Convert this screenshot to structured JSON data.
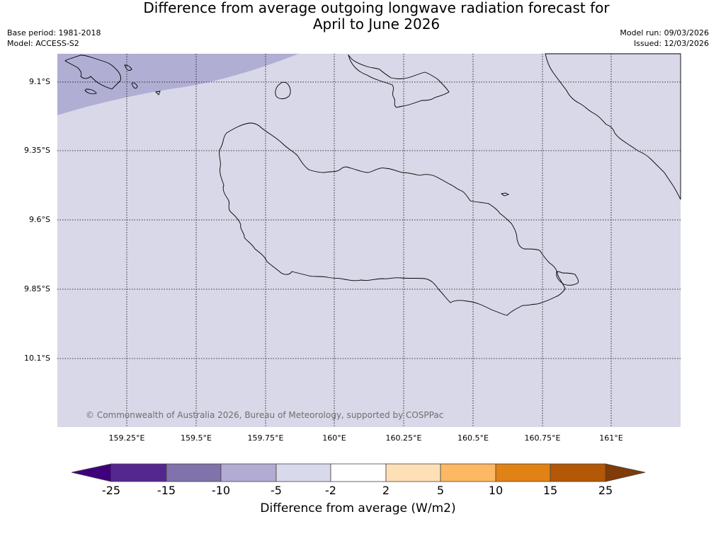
{
  "title_line1": "Difference from average outgoing longwave radiation forecast for",
  "title_line2": "April to June 2026",
  "meta": {
    "base_period": "Base period: 1981-2018",
    "model": "Model: ACCESS-S2",
    "model_run": "Model run: 09/03/2026",
    "issued": "Issued: 12/03/2026"
  },
  "map": {
    "lat_labels": [
      "9.1°S",
      "9.35°S",
      "9.6°S",
      "9.85°S",
      "10.1°S"
    ],
    "lon_labels": [
      "159.25°E",
      "159.5°E",
      "159.75°E",
      "160°E",
      "160.25°E",
      "160.5°E",
      "160.75°E",
      "161°E"
    ],
    "copyright": "© Commonwealth of Australia 2026, Bureau of Meteorology, supported by COSPPac",
    "background_color": "#d8d8e8",
    "anomaly_region_color": "#b1aed4"
  },
  "colorbar": {
    "title": "Difference from average (W/m2)",
    "tick_labels": [
      "-25",
      "-15",
      "-10",
      "-5",
      "-2",
      "2",
      "5",
      "10",
      "15",
      "25"
    ],
    "under_color": "#3f007d",
    "over_color": "#7f3b08",
    "bins": [
      {
        "from": -25,
        "to": -15,
        "color": "#54278f"
      },
      {
        "from": -15,
        "to": -10,
        "color": "#8073ac"
      },
      {
        "from": -10,
        "to": -5,
        "color": "#b2abd2"
      },
      {
        "from": -5,
        "to": -2,
        "color": "#d8daeb"
      },
      {
        "from": -2,
        "to": 2,
        "color": "#ffffff"
      },
      {
        "from": 2,
        "to": 5,
        "color": "#fee0b6"
      },
      {
        "from": 5,
        "to": 10,
        "color": "#fdb863"
      },
      {
        "from": 10,
        "to": 15,
        "color": "#e08214"
      },
      {
        "from": 15,
        "to": 25,
        "color": "#b35806"
      }
    ]
  }
}
